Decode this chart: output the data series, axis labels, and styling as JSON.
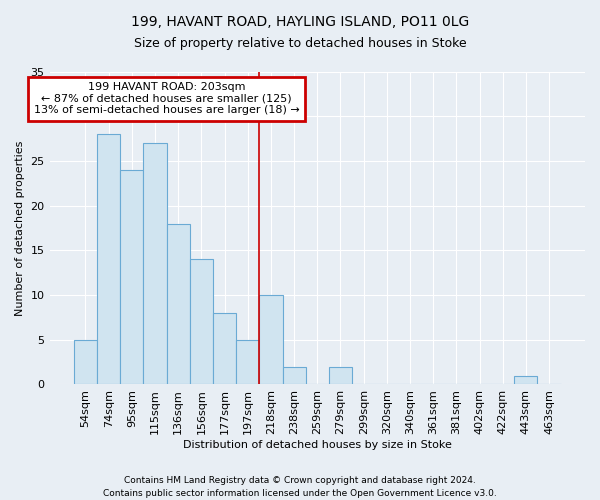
{
  "title1": "199, HAVANT ROAD, HAYLING ISLAND, PO11 0LG",
  "title2": "Size of property relative to detached houses in Stoke",
  "xlabel": "Distribution of detached houses by size in Stoke",
  "ylabel": "Number of detached properties",
  "categories": [
    "54sqm",
    "74sqm",
    "95sqm",
    "115sqm",
    "136sqm",
    "156sqm",
    "177sqm",
    "197sqm",
    "218sqm",
    "238sqm",
    "259sqm",
    "279sqm",
    "299sqm",
    "320sqm",
    "340sqm",
    "361sqm",
    "381sqm",
    "402sqm",
    "422sqm",
    "443sqm",
    "463sqm"
  ],
  "values": [
    5,
    28,
    24,
    27,
    18,
    14,
    8,
    5,
    10,
    2,
    0,
    2,
    0,
    0,
    0,
    0,
    0,
    0,
    0,
    1,
    0
  ],
  "bar_color": "#d0e4f0",
  "bar_edge_color": "#6aaad4",
  "annotation_line1": "199 HAVANT ROAD: 203sqm",
  "annotation_line2": "← 87% of detached houses are smaller (125)",
  "annotation_line3": "13% of semi-detached houses are larger (18) →",
  "annotation_box_color": "white",
  "annotation_box_edge_color": "#cc0000",
  "vertical_line_x": 7.5,
  "ylim": [
    0,
    35
  ],
  "yticks": [
    0,
    5,
    10,
    15,
    20,
    25,
    30,
    35
  ],
  "footnote1": "Contains HM Land Registry data © Crown copyright and database right 2024.",
  "footnote2": "Contains public sector information licensed under the Open Government Licence v3.0.",
  "background_color": "#e8eef4",
  "grid_color": "#ffffff",
  "title1_fontsize": 10,
  "title2_fontsize": 9,
  "axis_fontsize": 8,
  "tick_fontsize": 8,
  "annotation_fontsize": 8
}
